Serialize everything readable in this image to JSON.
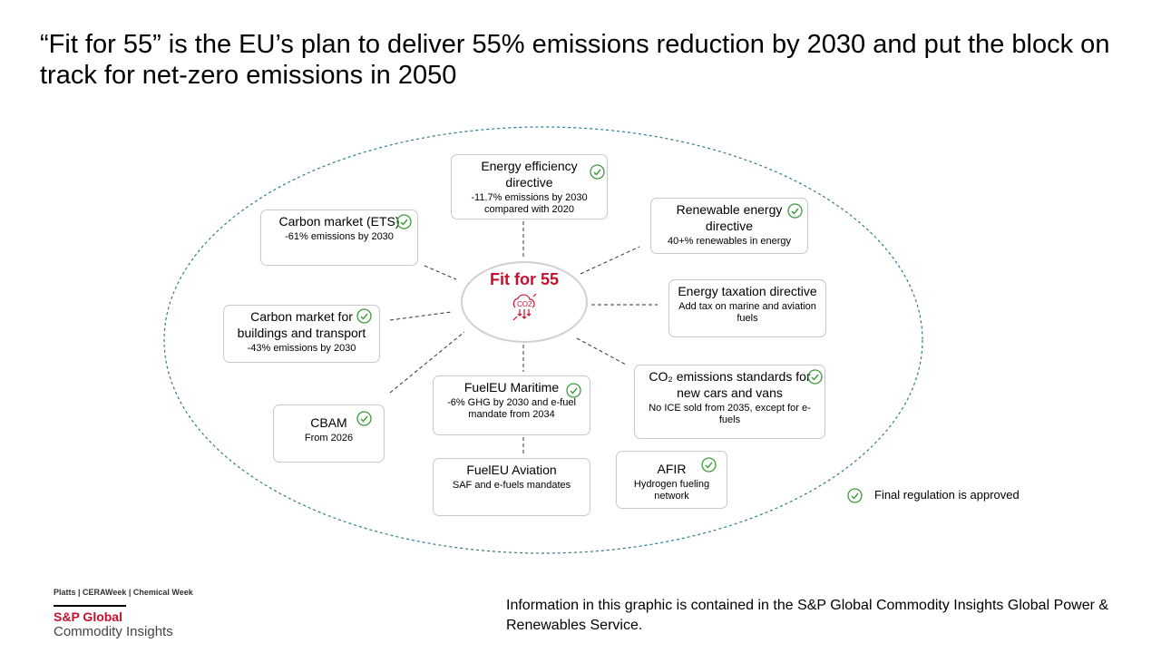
{
  "title": "“Fit for 55” is the EU’s plan to deliver 55% emissions reduction by 2030 and put the block on track for net-zero emissions in 2050",
  "center": {
    "label": "Fit for 55",
    "icon": "co2-cloud-icon"
  },
  "boxes": [
    {
      "id": "energy-efficiency",
      "title": "Energy efficiency directive",
      "sub": "-11.7% emissions by 2030 compared with 2020",
      "approved": true
    },
    {
      "id": "carbon-market-ets",
      "title": "Carbon market (ETS)",
      "sub": "-61% emissions by 2030",
      "approved": true
    },
    {
      "id": "renewable-energy",
      "title": "Renewable energy directive",
      "sub": "40+% renewables in energy",
      "approved": true
    },
    {
      "id": "energy-taxation",
      "title": "Energy taxation directive",
      "sub": "Add tax on marine and aviation fuels",
      "approved": false
    },
    {
      "id": "carbon-market-buildings",
      "title": "Carbon market for buildings and transport",
      "sub": "-43% emissions by 2030",
      "approved": true
    },
    {
      "id": "co2-standards",
      "title": "CO₂ emissions standards for new cars and vans",
      "sub": "No ICE sold from 2035, except for e-fuels",
      "approved": true
    },
    {
      "id": "fueleu-maritime",
      "title": "FuelEU Maritime",
      "sub": "-6% GHG by 2030 and e-fuel mandate from 2034",
      "approved": true
    },
    {
      "id": "cbam",
      "title": "CBAM",
      "sub": "From 2026",
      "approved": true
    },
    {
      "id": "fueleu-aviation",
      "title": "FuelEU Aviation",
      "sub": "SAF and e-fuels mandates",
      "approved": false
    },
    {
      "id": "afir",
      "title": "AFIR",
      "sub": "Hydrogen fueling network",
      "approved": true
    }
  ],
  "legend": {
    "label": "Final regulation is approved"
  },
  "footer": {
    "note": "Information in this graphic is contained in the S&P Global Commodity Insights Global Power & Renewables Service.",
    "brands": "Platts | CERAWeek | Chemical Week",
    "logo_line1": "S&P Global",
    "logo_line2": "Commodity Insights"
  },
  "colors": {
    "accent": "#c8102e",
    "check": "#3a9a3a",
    "ellipse": "#2e7d8c"
  }
}
